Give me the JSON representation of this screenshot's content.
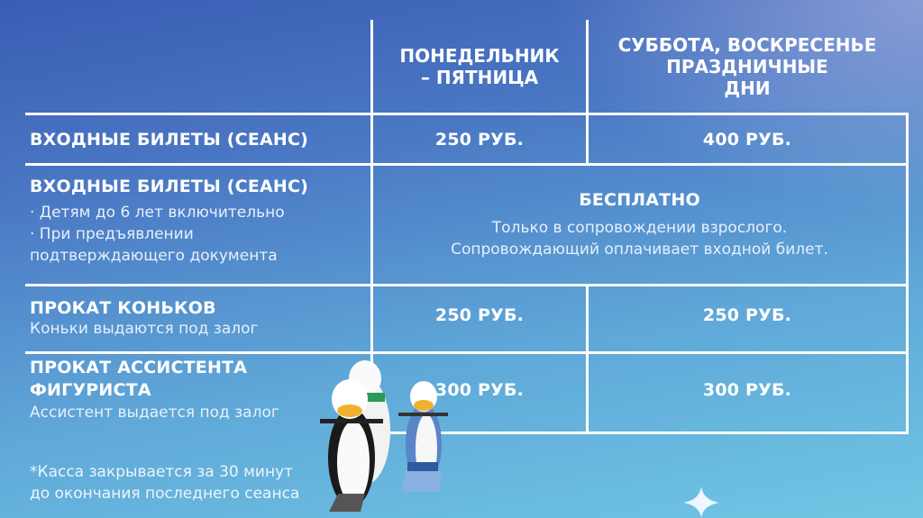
{
  "header": {
    "col1": "ПОНЕДЕЛЬНИК\n– ПЯТНИЦА",
    "col2": "СУББОТА, ВОСКРЕСЕНЬЕ\nПРАЗДНИЧНЫЕ\nДНИ"
  },
  "rows": [
    {
      "title": "ВХОДНЫЕ БИЛЕТЫ (СЕАНС)",
      "weekday": "250 РУБ.",
      "weekend": "400 РУБ."
    },
    {
      "title": "ВХОДНЫЕ БИЛЕТЫ (СЕАНС)",
      "notes": [
        "· Детям до 6 лет включительно",
        "· При предъявлении",
        "подтверждающего документа"
      ],
      "merged_title": "БЕСПЛАТНО",
      "merged_text": [
        "Только в сопровождении взрослого.",
        "Сопровождающий оплачивает входной билет."
      ]
    },
    {
      "title": "ПРОКАТ КОНЬКОВ",
      "subtitle": "Коньки выдаются под залог",
      "weekday": "250 РУБ.",
      "weekend": "250 РУБ."
    },
    {
      "title": "ПРОКАТ АССИСТЕНТА\nФИГУРИСТА",
      "subtitle": "Ассистент выдается под залог",
      "weekday": "300 РУБ.",
      "weekend": "300 РУБ."
    }
  ],
  "footnote": "*Касса закрывается за 30 минут\nдо окончания последнего сеанса",
  "colors": {
    "line": "#ffffff",
    "bg_top": "#3a5db4",
    "bg_bottom": "#70c6e4"
  }
}
